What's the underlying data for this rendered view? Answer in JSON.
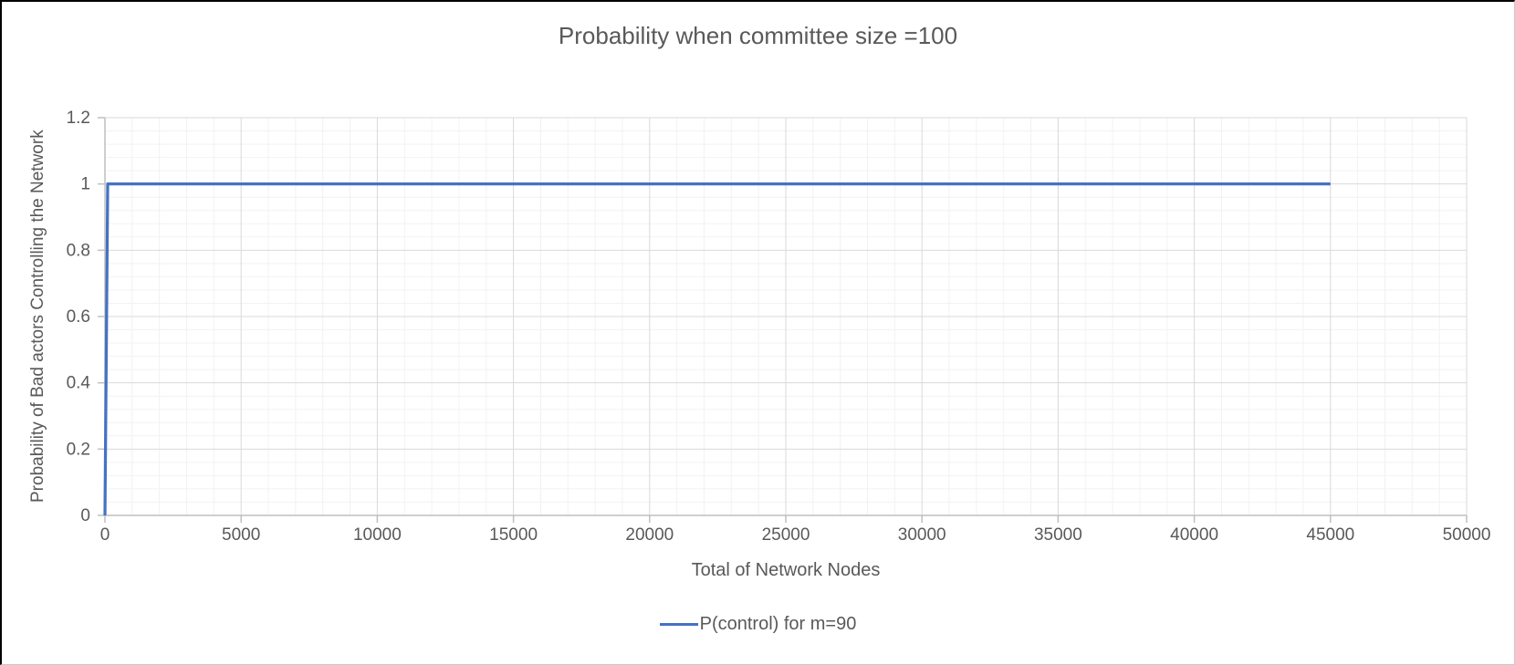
{
  "colors": {
    "accent": "#4472C4",
    "text": "#595959",
    "grid_major": "#D9D9D9",
    "grid_minor": "#F2F2F2",
    "axis_line": "#BFBFBF"
  },
  "chart_data": {
    "type": "line",
    "title": "Probability when committee size =100",
    "xlabel": "Total of Network Nodes",
    "ylabel": "Probability of Bad actors Controlling the Network",
    "xlim": [
      0,
      50000
    ],
    "ylim": [
      0,
      1.2
    ],
    "x_major_unit": 5000,
    "x_minor_unit": 1000,
    "y_major_unit": 0.2,
    "y_minor_unit": 0.04,
    "x_tick_labels": [
      "0",
      "5000",
      "10000",
      "15000",
      "20000",
      "25000",
      "30000",
      "35000",
      "40000",
      "45000",
      "50000"
    ],
    "y_tick_labels": [
      "0",
      "0.2",
      "0.4",
      "0.6",
      "0.8",
      "1",
      "1.2"
    ],
    "grid": "major and minor gridlines on both axes",
    "legend_position": "bottom-center",
    "series": [
      {
        "name": "P(control) for m=90",
        "color": "#4472C4",
        "points": [
          [
            0,
            0
          ],
          [
            100,
            1
          ],
          [
            45000,
            1
          ]
        ],
        "shape_note": "rises vertically from 0 to 1 at the far left, then constant at 1 until x=45000"
      }
    ]
  }
}
